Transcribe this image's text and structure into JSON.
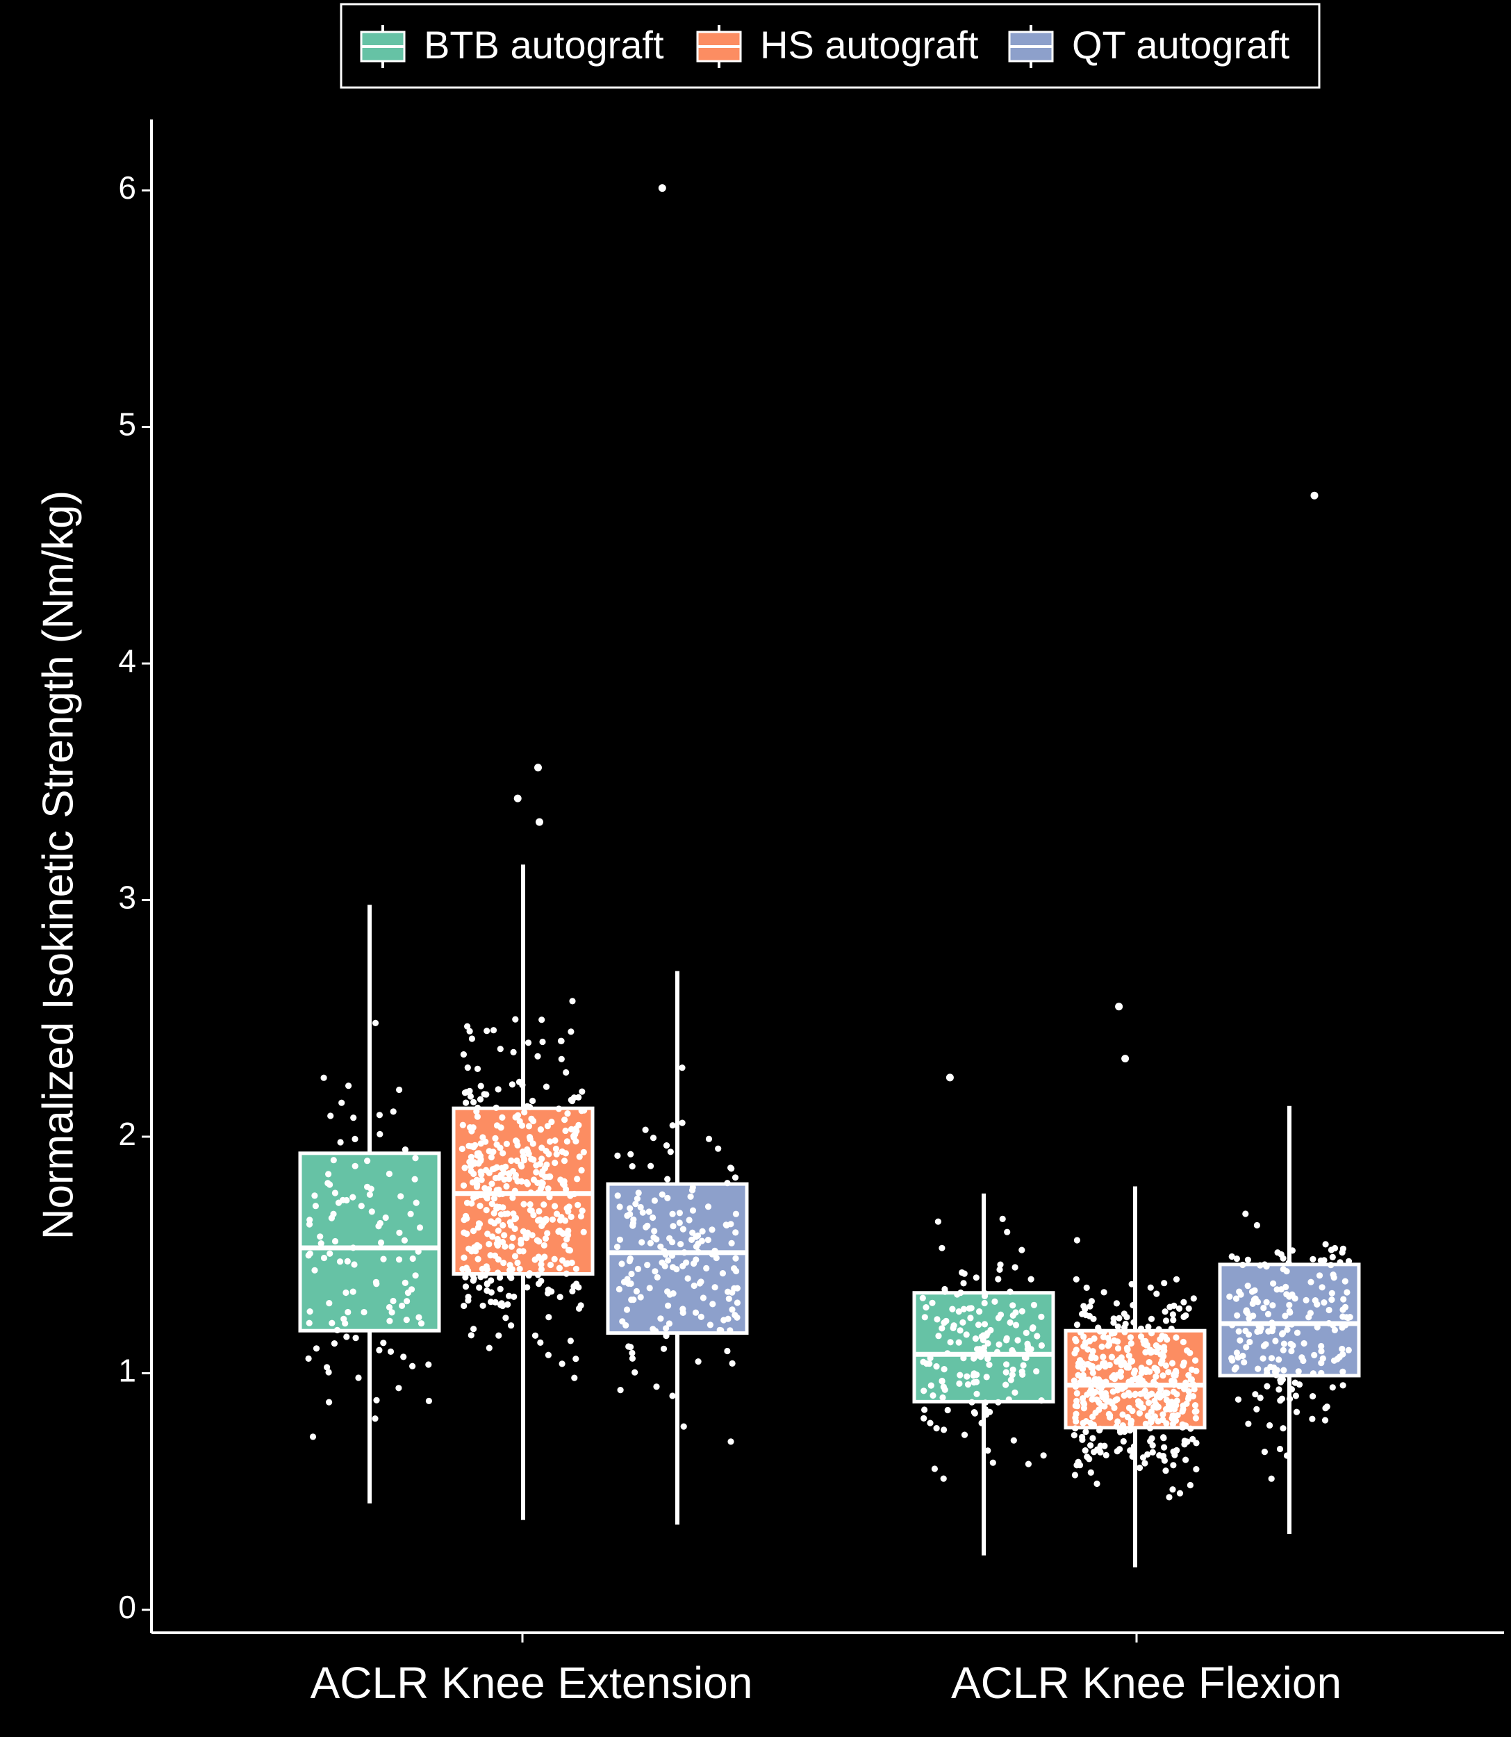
{
  "chart_data": {
    "type": "box",
    "title": "",
    "xlabel": "",
    "ylabel": "Normalized Isokinetic Strength (Nm/kg)",
    "ylim": [
      0,
      6.3
    ],
    "yticks": [
      0,
      1,
      2,
      3,
      4,
      5,
      6
    ],
    "categories": [
      "ACLR Knee Extension",
      "ACLR Knee Flexion"
    ],
    "grid": false,
    "legend_position": "top",
    "background": "#000000",
    "series": [
      {
        "name": "BTB autograft",
        "color": "#66c2a5",
        "boxes": [
          {
            "min": 0.45,
            "q1": 1.18,
            "median": 1.53,
            "q3": 1.93,
            "max": 2.98,
            "outliers": []
          },
          {
            "min": 0.23,
            "q1": 0.88,
            "median": 1.08,
            "q3": 1.34,
            "max": 1.76,
            "outliers": [
              2.25
            ]
          }
        ]
      },
      {
        "name": "HS autograft",
        "color": "#fc8d62",
        "boxes": [
          {
            "min": 0.38,
            "q1": 1.42,
            "median": 1.76,
            "q3": 2.12,
            "max": 3.15,
            "outliers": [
              3.33,
              3.43,
              3.56
            ]
          },
          {
            "min": 0.18,
            "q1": 0.77,
            "median": 0.95,
            "q3": 1.18,
            "max": 1.79,
            "outliers": [
              2.33,
              2.55
            ]
          }
        ]
      },
      {
        "name": "QT autograft",
        "color": "#8da0cb",
        "boxes": [
          {
            "min": 0.36,
            "q1": 1.17,
            "median": 1.51,
            "q3": 1.8,
            "max": 2.7,
            "outliers": [
              6.01
            ]
          },
          {
            "min": 0.32,
            "q1": 0.99,
            "median": 1.21,
            "q3": 1.46,
            "max": 2.13,
            "outliers": [
              4.71
            ]
          }
        ]
      }
    ]
  }
}
